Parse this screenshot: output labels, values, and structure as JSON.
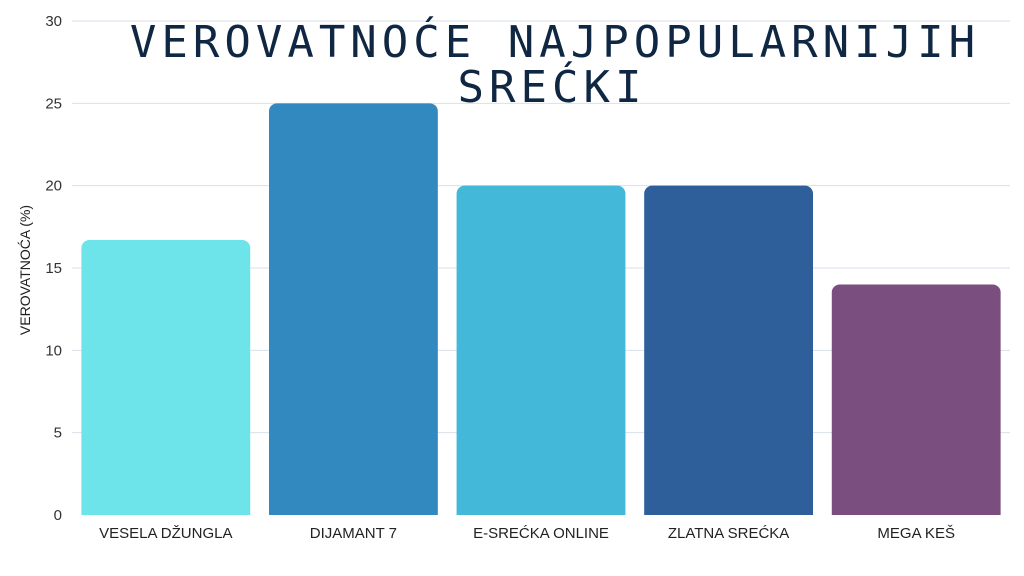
{
  "chart_data": {
    "type": "bar",
    "title_lines": [
      "VEROVATNOĆE NAJPOPULARNIJIH",
      "SREĆKI"
    ],
    "ylabel": "VEROVATNOĆA (%)",
    "xlabel": "",
    "ylim": [
      0,
      30
    ],
    "yticks": [
      0,
      5,
      10,
      15,
      20,
      25,
      30
    ],
    "grid": true,
    "legend": "none",
    "categories": [
      "VESELA DŽUNGLA",
      "DIJAMANT 7",
      "E-SREĆKA ONLINE",
      "ZLATNA SREĆKA",
      "MEGA KEŠ"
    ],
    "values": [
      16.7,
      25,
      20,
      20,
      14
    ],
    "colors": [
      "#6de4ea",
      "#3189bf",
      "#43b8d8",
      "#2e5f9b",
      "#7a4e7e"
    ]
  }
}
